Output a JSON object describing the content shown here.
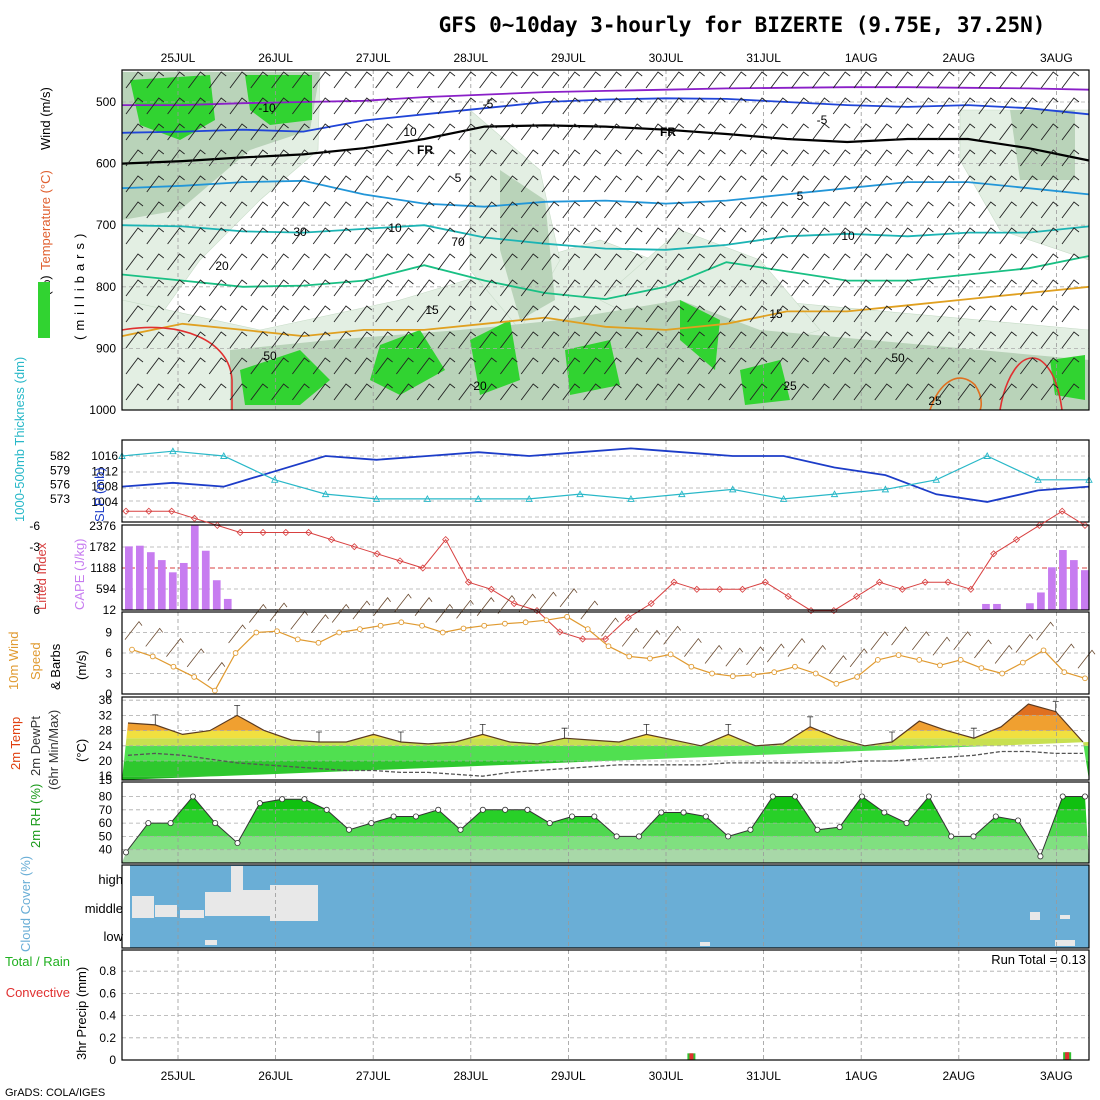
{
  "title": "GFS 0~10day 3-hourly for BIZERTE (9.75E, 37.25N)",
  "footer": "GrADS: COLA/IGES",
  "dates": [
    "25JUL",
    "26JUL",
    "27JUL",
    "28JUL",
    "29JUL",
    "30JUL",
    "31JUL",
    "1AUG",
    "2AUG",
    "3AUG"
  ],
  "colors": {
    "rh_light": "#e3efe3",
    "rh_mid": "#b9d3b9",
    "rh_dark": "#9dbb9d",
    "rh_green": "#31d331",
    "temp_purple": "#8a1fc8",
    "temp_blue": "#2045d8",
    "temp_sky": "#2296d8",
    "temp_teal": "#1cb4b4",
    "temp_green": "#19c084",
    "temp_orange": "#e0a020",
    "temp_red": "#e03030",
    "slp": "#1c3cc8",
    "thickness": "#29b8c8",
    "cape": "#c77cf0",
    "lifted": "#d84040",
    "wind": "#e09a30",
    "tmax_red": "#e04010",
    "cloud": "#6aaed6",
    "dewpt": "#555555"
  },
  "chart_data": [
    {
      "type": "contour",
      "panel": "upper-air",
      "ylabel_parts": [
        "RH (%)",
        "Temperature (°C)",
        "Wind (m/s)"
      ],
      "ylabel_units": "(millibars)",
      "y_ticks": [
        "500",
        "600",
        "700",
        "800",
        "900",
        "1000"
      ],
      "ylim": [
        1000,
        450
      ],
      "contour_labels": [
        "-10",
        "-5",
        "FR",
        "5",
        "10",
        "15",
        "20",
        "25",
        "-5",
        "FR",
        "5",
        "10",
        "15",
        "20",
        "25",
        "10",
        "30",
        "50",
        "50",
        "70"
      ],
      "series": [
        {
          "level": -10,
          "p": [
            505,
            505,
            502,
            500,
            498,
            492,
            488,
            484,
            482,
            480,
            478,
            477,
            476,
            476,
            477,
            478,
            480
          ]
        },
        {
          "level": -5,
          "p": [
            550,
            548,
            545,
            548,
            530,
            520,
            510,
            500,
            496,
            494,
            495,
            500,
            505,
            508,
            505,
            510,
            520
          ]
        },
        {
          "level": 0,
          "p": [
            600,
            596,
            590,
            585,
            575,
            560,
            540,
            538,
            540,
            545,
            552,
            560,
            565,
            560,
            560,
            575,
            595
          ]
        },
        {
          "level": 5,
          "p": [
            640,
            636,
            630,
            628,
            650,
            665,
            670,
            662,
            660,
            665,
            660,
            650,
            640,
            630,
            630,
            640,
            650
          ]
        },
        {
          "level": 10,
          "p": [
            700,
            702,
            710,
            712,
            706,
            700,
            720,
            730,
            738,
            740,
            732,
            718,
            714,
            718,
            712,
            712,
            702
          ]
        },
        {
          "level": 15,
          "p": [
            780,
            790,
            800,
            798,
            790,
            765,
            790,
            810,
            820,
            800,
            760,
            775,
            790,
            790,
            780,
            770,
            750
          ]
        },
        {
          "level": 20,
          "p": [
            880,
            860,
            870,
            880,
            870,
            870,
            860,
            850,
            865,
            870,
            860,
            840,
            840,
            830,
            820,
            810,
            800
          ]
        }
      ]
    },
    {
      "type": "line",
      "panel": "thickness-slp",
      "ylabel_left": "1000-500mb Thickness (dm)",
      "ylabel_right": "SLP (mb)",
      "thickness_ticks": [
        "582",
        "579",
        "576",
        "573"
      ],
      "slp_ticks": [
        "1016",
        "1012",
        "1008",
        "1004"
      ],
      "x": [
        0,
        1,
        2,
        3,
        4,
        5,
        6,
        7,
        8,
        9,
        10,
        11,
        12,
        13,
        14,
        15,
        16,
        17,
        18,
        19
      ],
      "series": [
        {
          "name": "SLP",
          "values": [
            1008,
            1009,
            1008,
            1012,
            1016,
            1015,
            1016,
            1017,
            1016,
            1017,
            1018,
            1017,
            1016,
            1016,
            1013,
            1011,
            1006,
            1004,
            1007,
            1008
          ]
        },
        {
          "name": "Thickness",
          "values": [
            582,
            583,
            582,
            577,
            574,
            573,
            573,
            573,
            573,
            574,
            573,
            574,
            575,
            573,
            574,
            575,
            577,
            582,
            577,
            577
          ]
        }
      ]
    },
    {
      "type": "bar",
      "panel": "cape-lifted-index",
      "ylabel_left": "Lifted Index",
      "ylabel_right": "CAPE (J/kg)",
      "li_ticks": [
        "-6",
        "-3",
        "0",
        "3",
        "6"
      ],
      "cape_ticks": [
        "2376",
        "1782",
        "1188",
        "594",
        "12"
      ],
      "cape_values": [
        1782,
        1800,
        1620,
        1400,
        1060,
        1320,
        2376,
        1660,
        840,
        320,
        0,
        0,
        0,
        0,
        0,
        0,
        0,
        0,
        0,
        0,
        0,
        0,
        0,
        0,
        0,
        0,
        0,
        0,
        0,
        0,
        0,
        0,
        0,
        0,
        0,
        0,
        0,
        0,
        0,
        0,
        0,
        0,
        0,
        0,
        0,
        0,
        0,
        0,
        0,
        0,
        0,
        0,
        0,
        0,
        0,
        0,
        0,
        0,
        0,
        0,
        0,
        0,
        0,
        0,
        0,
        0,
        0,
        0,
        0,
        0,
        0,
        0,
        0,
        0,
        0,
        0,
        0,
        0,
        180,
        180,
        0,
        0,
        200,
        500,
        1200,
        1680,
        1400,
        1120
      ],
      "li_values": [
        -8,
        -8,
        -8,
        -7,
        -6,
        -5,
        -5,
        -5,
        -5,
        -4,
        -3,
        -2,
        -1,
        0,
        -4,
        2,
        3,
        5,
        6,
        9,
        10,
        10,
        7,
        5,
        2,
        3,
        3,
        3,
        2,
        4,
        6,
        6,
        4,
        2,
        3,
        2,
        2,
        3,
        -2,
        -4,
        -6,
        -8,
        -6
      ]
    },
    {
      "type": "line",
      "panel": "wind",
      "ylabel": "10m Wind Speed & Barbs (m/s)",
      "ylabel_parts": [
        "10m Wind",
        "Speed",
        "& Barbs",
        "(m/s)"
      ],
      "y_ticks": [
        "0",
        "3",
        "6",
        "9"
      ],
      "ylim": [
        0,
        12
      ],
      "series": [
        {
          "name": "Speed",
          "values": [
            6.5,
            5.5,
            4,
            2.5,
            0.5,
            6,
            9,
            9.2,
            8,
            7.5,
            9,
            9.5,
            10,
            10.5,
            10,
            9,
            9.6,
            10,
            10.3,
            10.5,
            10.8,
            11.3,
            9.5,
            7,
            5.5,
            5.2,
            5.8,
            4,
            3,
            2.6,
            2.8,
            3.2,
            4,
            3,
            1.5,
            2.5,
            5,
            5.7,
            5,
            4.2,
            5,
            3.8,
            3,
            4.6,
            6.4,
            3.2,
            2.3
          ]
        }
      ]
    },
    {
      "type": "area",
      "panel": "temperature",
      "ylabel_parts": [
        "2m Temp",
        "2m DewPt",
        "(6hr Min/Max)",
        "(°C)"
      ],
      "y_ticks": [
        "36",
        "32",
        "28",
        "24",
        "20",
        "16",
        "15"
      ],
      "ylim": [
        15,
        37
      ],
      "series": [
        {
          "name": "Temp",
          "values": [
            30,
            29.5,
            27,
            28,
            32,
            28,
            25.5,
            25,
            25,
            27,
            25,
            24.5,
            25,
            27,
            25,
            24.5,
            26,
            25.5,
            25,
            27,
            25.5,
            24,
            27,
            24,
            24.5,
            29,
            26,
            24,
            25,
            30.5,
            28,
            26,
            29,
            35,
            33,
            25
          ]
        },
        {
          "name": "DewPt",
          "values": [
            21.5,
            22,
            21.5,
            20.5,
            19.5,
            19,
            18.5,
            18,
            17.5,
            17.5,
            17,
            17,
            16.5,
            16,
            17,
            17.5,
            18,
            18.5,
            19,
            19,
            19,
            19,
            19.5,
            19.5,
            19.5,
            19.5,
            19.5,
            20,
            20,
            20.5,
            21,
            21.5,
            22.5,
            22.5,
            22,
            22
          ]
        }
      ]
    },
    {
      "type": "area",
      "panel": "relative-humidity",
      "ylabel": "2m RH (%)",
      "y_ticks": [
        "80",
        "70",
        "60",
        "50",
        "40"
      ],
      "ylim": [
        30,
        90
      ],
      "series": [
        {
          "name": "RH",
          "values": [
            38,
            60,
            60,
            80,
            60,
            45,
            75,
            78,
            78,
            70,
            55,
            60,
            65,
            65,
            70,
            55,
            70,
            70,
            70,
            60,
            65,
            65,
            50,
            50,
            68,
            68,
            65,
            50,
            55,
            80,
            80,
            55,
            57,
            80,
            68,
            60,
            80,
            50,
            50,
            65,
            62,
            35,
            80,
            80
          ]
        }
      ]
    },
    {
      "type": "area",
      "panel": "cloud-cover",
      "ylabel": "Cloud Cover (%)",
      "y_ticks": [
        "high",
        "middle",
        "low"
      ]
    },
    {
      "type": "bar",
      "panel": "precipitation",
      "ylabel_left": "Total / Rain",
      "ylabel_left2": "Convective",
      "ylabel": "3hr Precip (mm)",
      "annotation": "Run Total = 0.13",
      "y_ticks": [
        "0.8",
        "0.6",
        "0.4",
        "0.2",
        "0"
      ],
      "ylim": [
        0,
        0.95
      ],
      "x": [
        5.25,
        9.1
      ],
      "values": [
        0.06,
        0.07
      ]
    }
  ]
}
